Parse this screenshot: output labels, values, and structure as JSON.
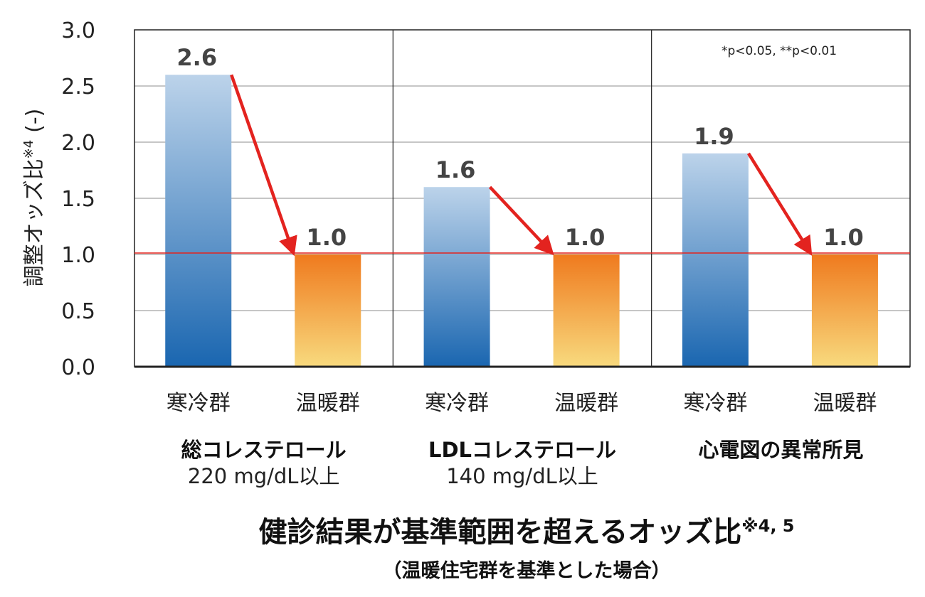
{
  "chart_data": {
    "type": "bar",
    "title": "健診結果が基準範囲を超えるオッズ比",
    "title_note": "※4, 5",
    "subtitle": "（温暖住宅群を基準とした場合）",
    "ylabel": "調整オッズ比",
    "ylabel_note": "※4",
    "ylabel_unit": "(-)",
    "ylim": [
      0,
      3.0
    ],
    "yticks": [
      "0.0",
      "0.5",
      "1.0",
      "1.5",
      "2.0",
      "2.5",
      "3.0"
    ],
    "reference_line": 1.0,
    "annotation": "*p<0.05, **p<0.01",
    "groups": [
      {
        "name": "総コレステロール",
        "sub": "220 mg/dL以上",
        "categories": [
          "寒冷群",
          "温暖群"
        ],
        "values": [
          2.6,
          1.0
        ],
        "labels": [
          "2.6",
          "1.0"
        ]
      },
      {
        "name": "LDLコレステロール",
        "sub": "140 mg/dL以上",
        "categories": [
          "寒冷群",
          "温暖群"
        ],
        "values": [
          1.6,
          1.0
        ],
        "labels": [
          "1.6",
          "1.0"
        ]
      },
      {
        "name": "心電図の異常所見",
        "sub": "",
        "categories": [
          "寒冷群",
          "温暖群"
        ],
        "values": [
          1.9,
          1.0
        ],
        "labels": [
          "1.9",
          "1.0"
        ]
      }
    ],
    "colors": {
      "cold_top": "#bcd3ea",
      "cold_bottom": "#1a66b0",
      "warm_top": "#ef7a1e",
      "warm_bottom": "#f8da7e",
      "arrow": "#e3231f",
      "reference": "#e3231f",
      "grid": "#b3b3b3"
    }
  }
}
